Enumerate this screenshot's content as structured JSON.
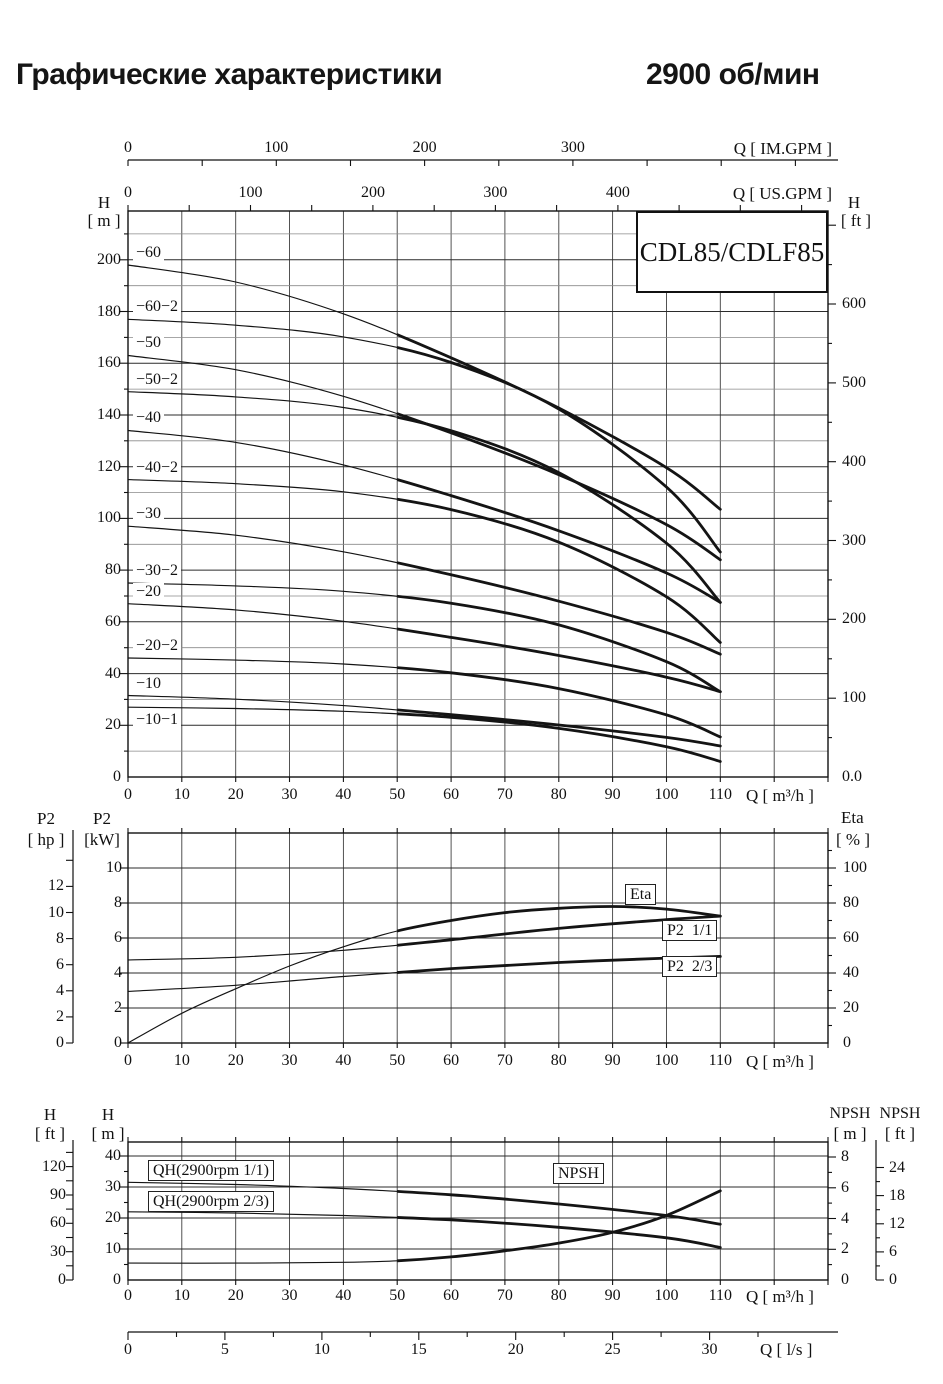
{
  "page_title": {
    "left": "Графические характеристики",
    "right": "2900 об/мин"
  },
  "model": "CDL85/CDLF85",
  "units": {
    "q_im": "Q [ IM.GPM ]",
    "q_us": "Q [ US.GPM ]",
    "q_m3h": "Q [ m³/h ]",
    "q_ls": "Q [ l/s ]",
    "h": "H",
    "m": "[ m ]",
    "ft": "[ ft ]",
    "p2": "P2",
    "hp": "[ hp ]",
    "kw": "[kW]",
    "eta": "Eta",
    "pct": "[ % ]",
    "npsh": "NPSH"
  },
  "chart_data": [
    {
      "type": "line",
      "title": "CDL85/CDLF85",
      "xlabel": "Q [ m³/h ]",
      "x_range": [
        0,
        130
      ],
      "grid": true,
      "bold_from_q": 50,
      "x_axes_top": [
        {
          "label": "Q [ IM.GPM ]",
          "ticks": [
            0,
            100,
            200,
            300
          ]
        },
        {
          "label": "Q [ US.GPM ]",
          "ticks": [
            0,
            100,
            200,
            300,
            400
          ]
        }
      ],
      "x_ticks": [
        0,
        10,
        20,
        30,
        40,
        50,
        60,
        70,
        80,
        90,
        100,
        110
      ],
      "ylabel_left": "H [ m ]",
      "y_ticks_left": [
        0,
        20,
        40,
        60,
        80,
        100,
        120,
        140,
        160,
        180,
        200
      ],
      "ylim_left": [
        0,
        220
      ],
      "ylabel_right": "H [ ft ]",
      "y_ticks_right": [
        "0.0",
        "100",
        "200",
        "300",
        "400",
        "500",
        "600"
      ],
      "x": [
        0,
        20,
        40,
        60,
        80,
        100,
        110
      ],
      "series": [
        {
          "name": "−60",
          "values": [
            198,
            191.4,
            179.1,
            162.1,
            142.7,
            119.6,
            103.5
          ]
        },
        {
          "name": "−60−2",
          "values": [
            177,
            174.7,
            170.2,
            160.3,
            142.3,
            112.1,
            87
          ]
        },
        {
          "name": "−50",
          "values": [
            163,
            157.5,
            147.2,
            133.1,
            116.9,
            97.6,
            84
          ]
        },
        {
          "name": "−50−2",
          "values": [
            149,
            147,
            142.9,
            133.9,
            117.7,
            90.4,
            67.5
          ]
        },
        {
          "name": "−40",
          "values": [
            134,
            129.4,
            120.7,
            108.8,
            95.2,
            78.9,
            67.5
          ]
        },
        {
          "name": "−40−2",
          "values": [
            115,
            113.4,
            110.3,
            103.4,
            90.8,
            69.7,
            52
          ]
        },
        {
          "name": "−30",
          "values": [
            97,
            93.5,
            87.1,
            78.2,
            68,
            55.9,
            47.5
          ]
        },
        {
          "name": "−30−2",
          "values": [
            75,
            73.9,
            71.8,
            67.2,
            58.8,
            44.6,
            33
          ]
        },
        {
          "name": "−20",
          "values": [
            67,
            64.6,
            60.2,
            54,
            47,
            38.6,
            33
          ]
        },
        {
          "name": "−20−2",
          "values": [
            46,
            45.2,
            43.7,
            40.3,
            34.2,
            24,
            15.5
          ]
        },
        {
          "name": "−10",
          "values": [
            31.5,
            30.1,
            27.6,
            24.1,
            20.1,
            15.3,
            12
          ]
        },
        {
          "name": "−10−1",
          "values": [
            27,
            26.5,
            25.4,
            23.1,
            18.8,
            11.7,
            6
          ]
        }
      ]
    },
    {
      "type": "line",
      "xlabel": "Q [ m³/h ]",
      "grid": true,
      "bold_from_q": 50,
      "x_ticks": [
        0,
        10,
        20,
        30,
        40,
        50,
        60,
        70,
        80,
        90,
        100,
        110
      ],
      "ylabel_left": "P2 [kW]",
      "y_ticks_left": [
        0,
        2,
        4,
        6,
        8,
        10
      ],
      "ylim_left": [
        0,
        12
      ],
      "ylabel_left_outer": "P2 [ hp ]",
      "y_ticks_left_outer": [
        0,
        2,
        4,
        6,
        8,
        10,
        12
      ],
      "ylabel_right": "Eta [ % ]",
      "y_ticks_right": [
        0,
        20,
        40,
        60,
        80,
        100
      ],
      "ylim_right": [
        0,
        120
      ],
      "series": [
        {
          "name": "Eta",
          "unit": "%",
          "x": [
            0,
            10,
            20,
            30,
            40,
            50,
            60,
            70,
            80,
            90,
            100,
            110
          ],
          "values": [
            0,
            17,
            31,
            44,
            55,
            64,
            70,
            74.5,
            77,
            78,
            76.5,
            72.5
          ]
        },
        {
          "name": "P2  1/1",
          "unit": "kW",
          "x": [
            0,
            20,
            40,
            60,
            80,
            100,
            110
          ],
          "values": [
            4.75,
            4.9,
            5.3,
            5.9,
            6.55,
            7.05,
            7.25
          ]
        },
        {
          "name": "P2  2/3",
          "unit": "kW",
          "x": [
            0,
            20,
            40,
            60,
            80,
            100,
            110
          ],
          "values": [
            2.95,
            3.3,
            3.8,
            4.25,
            4.6,
            4.85,
            4.95
          ]
        }
      ]
    },
    {
      "type": "line",
      "xlabel": "Q [ m³/h ]",
      "xlabel2": "Q [ l/s ]",
      "grid": true,
      "bold_from_q": 50,
      "x_ticks": [
        0,
        10,
        20,
        30,
        40,
        50,
        60,
        70,
        80,
        90,
        100,
        110
      ],
      "x_ticks_ls": [
        0,
        5,
        10,
        15,
        20,
        25,
        30
      ],
      "ylabel_left": "H [ m ]",
      "y_ticks_left": [
        0,
        10,
        20,
        30,
        40
      ],
      "ylim_left": [
        0,
        44
      ],
      "ylabel_left_outer": "H [ ft ]",
      "y_ticks_left_outer": [
        0,
        30,
        60,
        90,
        120
      ],
      "ylabel_right": "NPSH [ m ]",
      "y_ticks_right": [
        0,
        2,
        4,
        6,
        8
      ],
      "ylabel_right_outer": "NPSH [ ft ]",
      "y_ticks_right_outer": [
        0,
        6,
        12,
        18,
        24
      ],
      "series": [
        {
          "name": "QH(2900rpm 1/1)",
          "unit": "m",
          "x": [
            0,
            20,
            40,
            60,
            80,
            100,
            110
          ],
          "values": [
            31.5,
            30.8,
            29.5,
            27.5,
            24.5,
            20.8,
            18
          ]
        },
        {
          "name": "QH(2900rpm 2/3)",
          "unit": "m",
          "x": [
            0,
            20,
            40,
            60,
            80,
            100,
            110
          ],
          "values": [
            22,
            21.6,
            20.8,
            19.4,
            17,
            13.6,
            10.5
          ]
        },
        {
          "name": "NPSH",
          "unit": "npsh_m",
          "x": [
            0,
            20,
            40,
            50,
            60,
            70,
            80,
            90,
            100,
            110
          ],
          "values": [
            1.1,
            1.1,
            1.15,
            1.25,
            1.5,
            1.9,
            2.4,
            3.1,
            4.2,
            5.8
          ]
        }
      ]
    }
  ]
}
